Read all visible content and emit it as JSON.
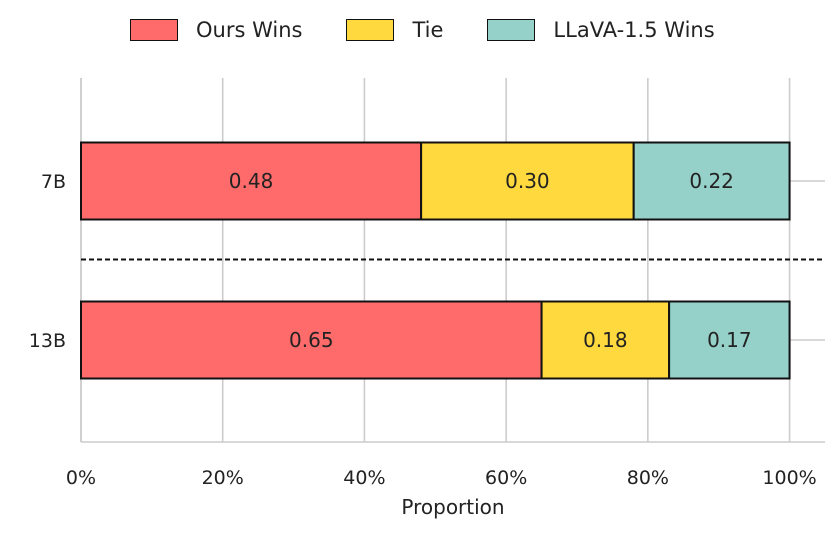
{
  "chart_data": {
    "type": "bar",
    "orientation": "horizontal",
    "stacked": true,
    "categories": [
      "7B",
      "13B"
    ],
    "series": [
      {
        "name": "Ours Wins",
        "values": [
          0.48,
          0.65
        ],
        "color": "#ff6b6b"
      },
      {
        "name": "Tie",
        "values": [
          0.3,
          0.18
        ],
        "color": "#ffd93d"
      },
      {
        "name": "LLaVA-1.5 Wins",
        "values": [
          0.22,
          0.17
        ],
        "color": "#95d1c9"
      }
    ],
    "value_labels": [
      [
        "0.48",
        "0.65"
      ],
      [
        "0.30",
        "0.18"
      ],
      [
        "0.22",
        "0.17"
      ]
    ],
    "xlabel": "Proportion",
    "ylabel": "",
    "xlim": [
      0,
      1.05
    ],
    "x_ticks": [
      0,
      0.2,
      0.4,
      0.6,
      0.8,
      1.0
    ],
    "x_tick_labels": [
      "0%",
      "20%",
      "40%",
      "60%",
      "80%",
      "100%"
    ],
    "grid": true,
    "legend_position": "top",
    "separator": "dashed line between categories"
  }
}
